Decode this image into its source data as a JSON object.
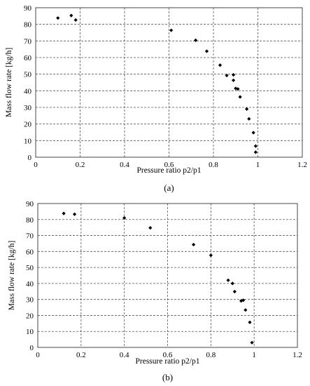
{
  "figure": {
    "panels": [
      {
        "caption": "(a)",
        "chart_data": {
          "type": "scatter",
          "xlabel": "Pressure ratio p2/p1",
          "ylabel": "Mass flow rate [kg/h]",
          "xlim": [
            0,
            1.2
          ],
          "ylim": [
            0,
            90
          ],
          "xticks": [
            "0",
            "0.2",
            "0.4",
            "0.6",
            "0.8",
            "1",
            "1.2"
          ],
          "yticks": [
            "0",
            "10",
            "20",
            "30",
            "40",
            "50",
            "60",
            "70",
            "80",
            "90"
          ],
          "grid": "dashed",
          "marker": "diamond",
          "series": [
            {
              "points": [
                [
                  0.1,
                  83.8
                ],
                [
                  0.16,
                  85.3
                ],
                [
                  0.18,
                  82.6
                ],
                [
                  0.61,
                  76.4
                ],
                [
                  0.72,
                  70.4
                ],
                [
                  0.77,
                  63.8
                ],
                [
                  0.83,
                  55.4
                ],
                [
                  0.86,
                  49.2
                ],
                [
                  0.89,
                  49.6
                ],
                [
                  0.89,
                  46.3
                ],
                [
                  0.9,
                  41.4
                ],
                [
                  0.91,
                  41.1
                ],
                [
                  0.92,
                  36.3
                ],
                [
                  0.95,
                  29.0
                ],
                [
                  0.96,
                  23.1
                ],
                [
                  0.98,
                  14.8
                ],
                [
                  0.99,
                  6.7
                ],
                [
                  0.99,
                  3.0
                ]
              ]
            }
          ]
        }
      },
      {
        "caption": "(b)",
        "chart_data": {
          "type": "scatter",
          "xlabel": "Pressure ratio p2/p1",
          "ylabel": "Mass flow rate [kg/h]",
          "xlim": [
            0,
            1.2
          ],
          "ylim": [
            0,
            90
          ],
          "xticks": [
            "0",
            "0.2",
            "0.4",
            "0.6",
            "0.8",
            "1",
            "1.2"
          ],
          "yticks": [
            "0",
            "10",
            "20",
            "30",
            "40",
            "50",
            "60",
            "70",
            "80",
            "90"
          ],
          "grid": "dashed",
          "marker": "diamond",
          "series": [
            {
              "points": [
                [
                  0.12,
                  83.8
                ],
                [
                  0.17,
                  83.3
                ],
                [
                  0.4,
                  81.0
                ],
                [
                  0.52,
                  74.8
                ],
                [
                  0.72,
                  64.3
                ],
                [
                  0.8,
                  57.6
                ],
                [
                  0.88,
                  42.0
                ],
                [
                  0.9,
                  40.0
                ],
                [
                  0.91,
                  34.9
                ],
                [
                  0.94,
                  29.1
                ],
                [
                  0.95,
                  29.5
                ],
                [
                  0.96,
                  23.4
                ],
                [
                  0.98,
                  15.7
                ],
                [
                  0.99,
                  3.0
                ]
              ]
            }
          ]
        }
      }
    ]
  }
}
